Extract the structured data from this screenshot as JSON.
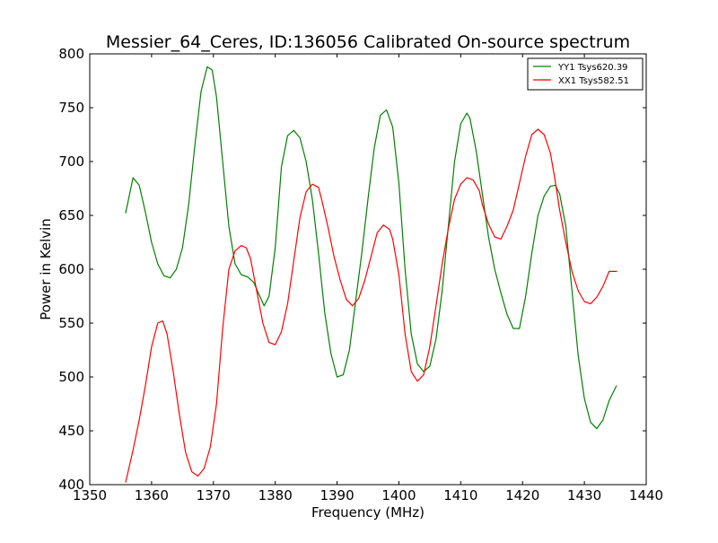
{
  "chart_data": {
    "type": "line",
    "title": "Messier_64_Ceres, ID:136056 Calibrated On-source spectrum",
    "xlabel": "Frequency (MHz)",
    "ylabel": "Power in Kelvin",
    "xlim": [
      1350,
      1440
    ],
    "ylim": [
      400,
      800
    ],
    "xticks": [
      1350,
      1360,
      1370,
      1380,
      1390,
      1400,
      1410,
      1420,
      1430,
      1440
    ],
    "yticks": [
      400,
      450,
      500,
      550,
      600,
      650,
      700,
      750,
      800
    ],
    "grid": false,
    "legend_position": "top-right",
    "series": [
      {
        "name": "YY1 Tsys620.39",
        "color": "#008000",
        "x": [
          1355.8,
          1357.0,
          1358.0,
          1359.0,
          1360.0,
          1361.0,
          1362.0,
          1363.0,
          1364.0,
          1365.0,
          1366.0,
          1367.0,
          1368.0,
          1369.0,
          1369.8,
          1370.5,
          1371.5,
          1372.5,
          1373.5,
          1374.5,
          1375.5,
          1376.5,
          1377.5,
          1378.2,
          1379.0,
          1380.0,
          1381.0,
          1382.0,
          1383.0,
          1384.0,
          1385.0,
          1386.0,
          1387.0,
          1388.0,
          1389.0,
          1390.0,
          1391.0,
          1392.0,
          1393.0,
          1394.0,
          1395.0,
          1396.0,
          1397.0,
          1398.0,
          1399.0,
          1400.0,
          1401.0,
          1402.0,
          1403.0,
          1404.0,
          1405.0,
          1406.0,
          1407.0,
          1408.0,
          1409.0,
          1410.0,
          1411.0,
          1411.5,
          1412.5,
          1413.5,
          1414.5,
          1415.5,
          1416.5,
          1417.5,
          1418.5,
          1419.5,
          1420.5,
          1421.5,
          1422.5,
          1423.5,
          1424.5,
          1425.3,
          1426.0,
          1427.0,
          1428.0,
          1429.0,
          1430.0,
          1431.0,
          1432.0,
          1433.0,
          1434.0,
          1435.2
        ],
        "values": [
          652,
          685,
          678,
          653,
          625,
          605,
          594,
          592,
          600,
          620,
          660,
          715,
          765,
          788,
          785,
          760,
          700,
          640,
          605,
          595,
          593,
          588,
          575,
          566,
          575,
          620,
          695,
          724,
          729,
          722,
          700,
          665,
          615,
          560,
          522,
          500,
          502,
          525,
          570,
          615,
          665,
          712,
          743,
          748,
          732,
          680,
          600,
          540,
          512,
          505,
          510,
          535,
          580,
          640,
          700,
          735,
          745,
          740,
          710,
          670,
          630,
          600,
          578,
          558,
          545,
          545,
          575,
          615,
          650,
          668,
          677,
          678,
          670,
          640,
          580,
          520,
          480,
          458,
          452,
          460,
          478,
          492
        ]
      },
      {
        "name": "XX1 Tsys582.51",
        "color": "#ff0000",
        "x": [
          1355.8,
          1357.0,
          1358.0,
          1359.0,
          1360.0,
          1361.0,
          1361.8,
          1362.5,
          1363.5,
          1364.5,
          1365.5,
          1366.5,
          1367.5,
          1368.5,
          1369.5,
          1370.5,
          1371.5,
          1372.5,
          1373.5,
          1374.5,
          1375.3,
          1376.0,
          1377.0,
          1378.0,
          1379.0,
          1380.0,
          1381.0,
          1382.0,
          1383.0,
          1384.0,
          1385.0,
          1386.0,
          1387.0,
          1387.5,
          1388.5,
          1389.5,
          1390.5,
          1391.5,
          1392.5,
          1393.5,
          1394.5,
          1395.5,
          1396.5,
          1397.5,
          1398.5,
          1399.0,
          1400.0,
          1401.0,
          1402.0,
          1403.0,
          1404.0,
          1405.0,
          1406.0,
          1407.0,
          1408.0,
          1409.0,
          1410.0,
          1411.0,
          1412.0,
          1413.0,
          1413.5,
          1414.5,
          1415.5,
          1416.5,
          1417.5,
          1418.5,
          1419.5,
          1420.5,
          1421.5,
          1422.5,
          1423.5,
          1424.5,
          1425.2,
          1426.0,
          1427.0,
          1428.0,
          1429.0,
          1430.0,
          1431.0,
          1432.0,
          1433.0,
          1434.0,
          1435.0,
          1435.3
        ],
        "values": [
          402,
          432,
          460,
          492,
          528,
          550,
          552,
          540,
          505,
          465,
          430,
          412,
          408,
          415,
          435,
          475,
          545,
          600,
          617,
          622,
          620,
          610,
          580,
          550,
          532,
          530,
          542,
          568,
          608,
          648,
          672,
          679,
          676,
          665,
          640,
          612,
          590,
          572,
          566,
          573,
          590,
          612,
          634,
          641,
          637,
          628,
          595,
          540,
          505,
          496,
          502,
          528,
          566,
          605,
          638,
          665,
          679,
          685,
          683,
          673,
          660,
          642,
          630,
          628,
          640,
          655,
          680,
          705,
          725,
          730,
          725,
          708,
          685,
          655,
          625,
          598,
          580,
          570,
          568,
          574,
          584,
          598,
          598,
          598
        ]
      }
    ]
  }
}
